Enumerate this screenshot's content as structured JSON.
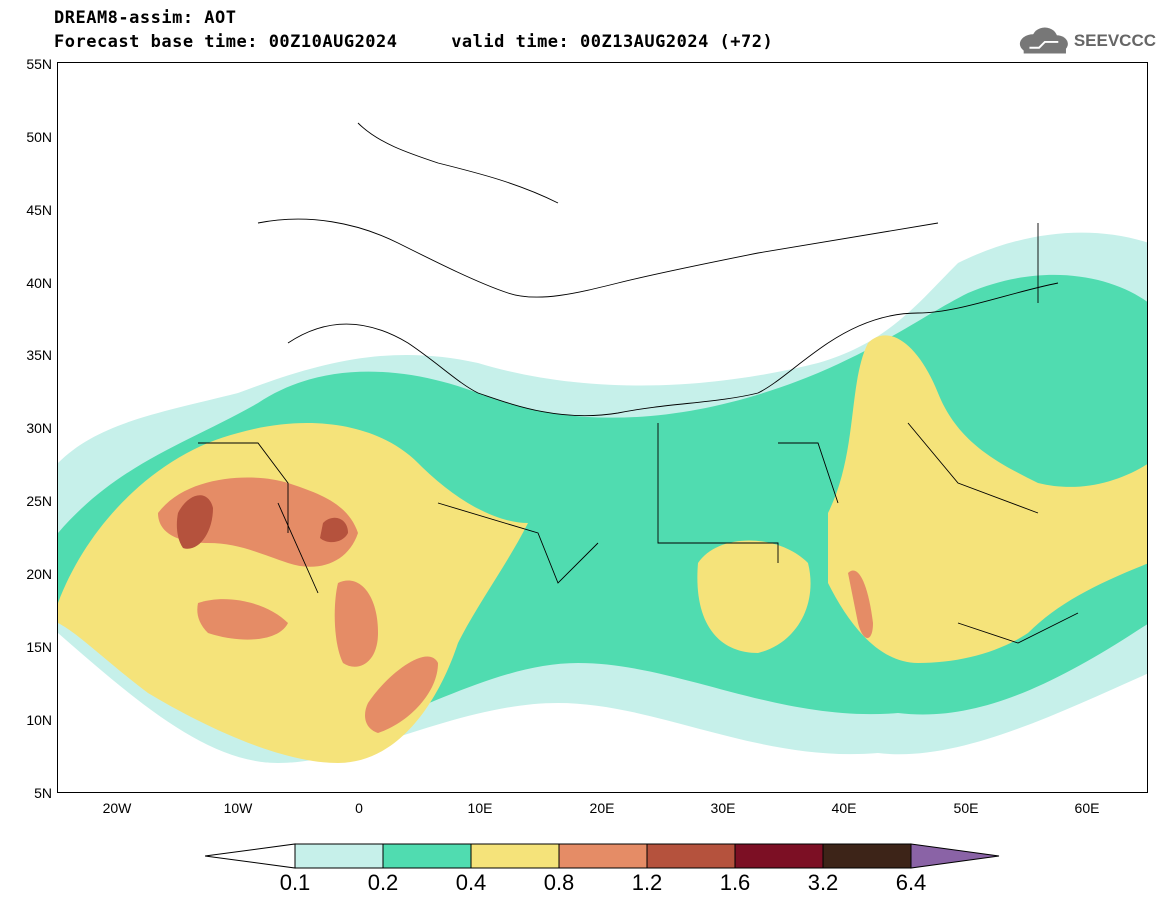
{
  "header": {
    "line1": "DREAM8-assim: AOT",
    "line2": "Forecast base time: 00Z10AUG2024     valid time: 00Z13AUG2024 (+72)"
  },
  "logo": {
    "text": "SEEVCCC",
    "icon": "cloud-icon"
  },
  "map": {
    "lat_ticks": [
      "55N",
      "50N",
      "45N",
      "40N",
      "35N",
      "30N",
      "25N",
      "20N",
      "15N",
      "10N",
      "5N"
    ],
    "lon_ticks": [
      "20W",
      "10W",
      "0",
      "10E",
      "20E",
      "30E",
      "40E",
      "50E",
      "60E"
    ],
    "lon_range": [
      -25,
      65
    ],
    "lat_range": [
      5,
      55
    ]
  },
  "colorbar": {
    "labels": [
      "0.1",
      "0.2",
      "0.4",
      "0.8",
      "1.2",
      "1.6",
      "3.2",
      "6.4"
    ],
    "colors": [
      "#c6f0ea",
      "#50dcb0",
      "#f5e37a",
      "#e58c66",
      "#b5523d",
      "#7c0f24",
      "#3d2418",
      "#8a63a6"
    ],
    "under_color": "#ffffff",
    "over_color": "#8a63a6"
  }
}
